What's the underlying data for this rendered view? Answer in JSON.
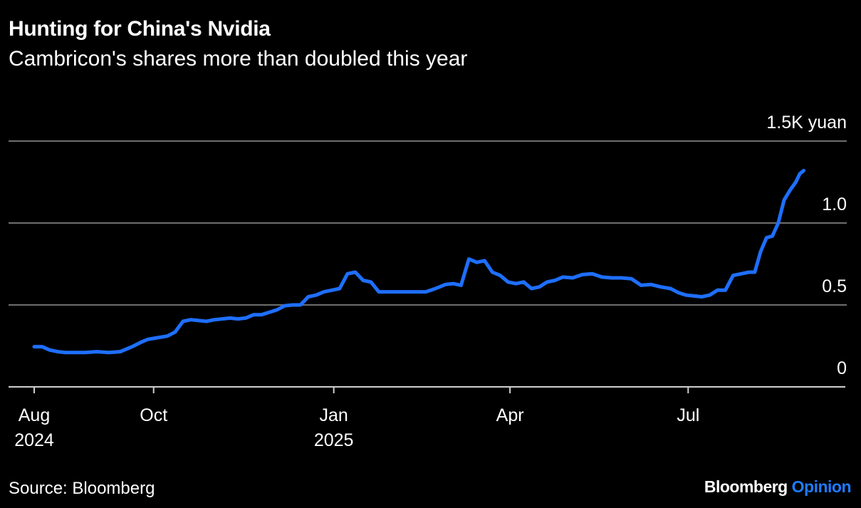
{
  "title": "Hunting for China's Nvidia",
  "subtitle": "Cambricon's shares more than doubled this year",
  "source": "Source: Bloomberg",
  "brand": {
    "name": "Bloomberg",
    "product": "Opinion",
    "accent_color": "#1e7cff"
  },
  "chart_data": {
    "type": "line",
    "title": "Hunting for China's Nvidia",
    "subtitle": "Cambricon's shares more than doubled this year",
    "ylim": [
      0,
      1500
    ],
    "grid": true,
    "y_ticks": [
      {
        "value": 0,
        "label": "0"
      },
      {
        "value": 500,
        "label": "0.5"
      },
      {
        "value": 1000,
        "label": "1.0"
      },
      {
        "value": 1500,
        "label": "1.5K yuan"
      }
    ],
    "x_ticks": [
      {
        "date": "2024-08-01",
        "label": "Aug",
        "sublabel": "2024"
      },
      {
        "date": "2024-10-01",
        "label": "Oct",
        "sublabel": ""
      },
      {
        "date": "2025-01-01",
        "label": "Jan",
        "sublabel": "2025"
      },
      {
        "date": "2025-04-01",
        "label": "Apr",
        "sublabel": ""
      },
      {
        "date": "2025-07-01",
        "label": "Jul",
        "sublabel": ""
      }
    ],
    "xlim": [
      "2024-08-01",
      "2025-09-20"
    ],
    "line_color": "#1e6fff",
    "series": [
      {
        "name": "",
        "x": [
          "2024-08-01",
          "2024-08-05",
          "2024-08-09",
          "2024-08-13",
          "2024-08-17",
          "2024-08-21",
          "2024-08-27",
          "2024-09-02",
          "2024-09-08",
          "2024-09-14",
          "2024-09-20",
          "2024-09-25",
          "2024-09-28",
          "2024-10-03",
          "2024-10-08",
          "2024-10-12",
          "2024-10-16",
          "2024-10-20",
          "2024-10-24",
          "2024-10-28",
          "2024-11-01",
          "2024-11-05",
          "2024-11-09",
          "2024-11-13",
          "2024-11-17",
          "2024-11-21",
          "2024-11-25",
          "2024-11-29",
          "2024-12-03",
          "2024-12-07",
          "2024-12-11",
          "2024-12-15",
          "2024-12-19",
          "2024-12-23",
          "2024-12-27",
          "2024-12-31",
          "2025-01-04",
          "2025-01-08",
          "2025-01-12",
          "2025-01-16",
          "2025-01-20",
          "2025-01-24",
          "2025-01-28",
          "2025-02-03",
          "2025-02-07",
          "2025-02-12",
          "2025-02-17",
          "2025-02-22",
          "2025-02-27",
          "2025-03-03",
          "2025-03-07",
          "2025-03-11",
          "2025-03-15",
          "2025-03-19",
          "2025-03-23",
          "2025-03-27",
          "2025-03-31",
          "2025-04-04",
          "2025-04-08",
          "2025-04-12",
          "2025-04-16",
          "2025-04-20",
          "2025-04-24",
          "2025-04-28",
          "2025-05-03",
          "2025-05-08",
          "2025-05-13",
          "2025-05-18",
          "2025-05-23",
          "2025-05-28",
          "2025-06-02",
          "2025-06-07",
          "2025-06-12",
          "2025-06-17",
          "2025-06-22",
          "2025-06-26",
          "2025-06-30",
          "2025-07-04",
          "2025-07-08",
          "2025-07-12",
          "2025-07-16",
          "2025-07-20",
          "2025-07-24",
          "2025-07-28",
          "2025-08-01",
          "2025-08-04",
          "2025-08-07",
          "2025-08-10",
          "2025-08-13",
          "2025-08-16",
          "2025-08-19",
          "2025-08-22",
          "2025-08-25",
          "2025-08-27",
          "2025-08-29"
        ],
        "values": [
          245,
          245,
          225,
          215,
          210,
          210,
          210,
          215,
          210,
          215,
          245,
          275,
          290,
          300,
          310,
          335,
          400,
          410,
          405,
          400,
          410,
          415,
          420,
          415,
          420,
          440,
          440,
          455,
          470,
          495,
          500,
          500,
          550,
          560,
          580,
          590,
          600,
          690,
          700,
          650,
          640,
          580,
          580,
          580,
          580,
          580,
          580,
          600,
          625,
          630,
          620,
          780,
          760,
          770,
          700,
          680,
          640,
          630,
          640,
          600,
          610,
          640,
          650,
          670,
          665,
          685,
          690,
          670,
          665,
          665,
          660,
          620,
          625,
          610,
          600,
          575,
          560,
          555,
          550,
          560,
          590,
          590,
          680,
          690,
          700,
          700,
          825,
          910,
          920,
          1000,
          1140,
          1200,
          1250,
          1300,
          1320
        ]
      }
    ]
  }
}
